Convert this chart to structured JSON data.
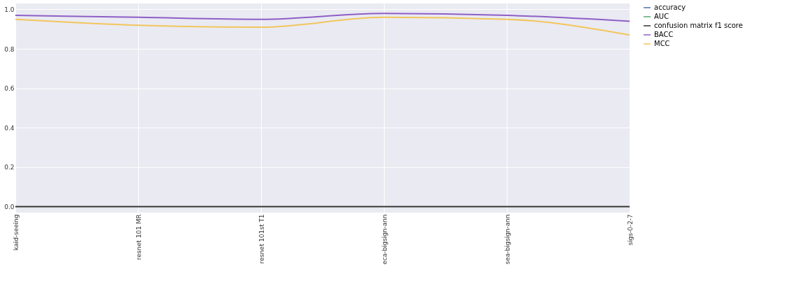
{
  "chart_data": {
    "type": "line",
    "categories": [
      "kaid-seeing",
      "resnet 101 MR",
      "resnet 101st T1",
      "eca-bigsign-ann",
      "sea-bigsign-ann",
      "sigs-0-2-7"
    ],
    "series": [
      {
        "name": "accuracy",
        "color": "#4c72b0",
        "values": [
          null,
          null,
          null,
          null,
          null,
          null
        ]
      },
      {
        "name": "AUC",
        "color": "#55a868",
        "values": [
          null,
          null,
          null,
          null,
          null,
          null
        ]
      },
      {
        "name": "confusion matrix f1 score",
        "color": "#333333",
        "values": [
          0,
          0,
          0,
          0,
          0,
          0
        ]
      },
      {
        "name": "BACC",
        "color": "#8e5fc7",
        "values": [
          0.97,
          0.96,
          0.95,
          0.98,
          0.97,
          0.94
        ]
      },
      {
        "name": "MCC",
        "color": "#f2c65c",
        "values": [
          0.95,
          0.92,
          0.91,
          0.96,
          0.95,
          0.87
        ]
      }
    ],
    "ylim": [
      -0.03,
      1.03
    ],
    "yticks": [
      {
        "value": 0,
        "label": "0.0"
      },
      0.2,
      0.4,
      0.6,
      0.8,
      {
        "value": 1,
        "label": "1.0"
      }
    ],
    "grid": true,
    "legend": "right"
  }
}
